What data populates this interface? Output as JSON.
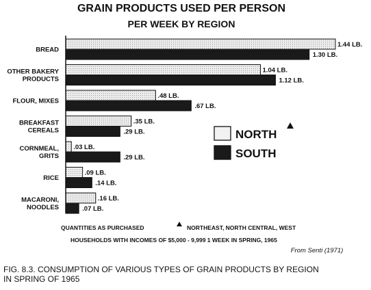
{
  "chart_data": {
    "type": "bar",
    "orientation": "horizontal",
    "title": "GRAIN PRODUCTS USED PER PERSON",
    "subtitle": "PER WEEK BY REGION",
    "categories": [
      [
        "BREAD"
      ],
      [
        "OTHER BAKERY",
        "PRODUCTS"
      ],
      [
        "FLOUR, MIXES"
      ],
      [
        "BREAKFAST",
        "CEREALS"
      ],
      [
        "CORNMEAL,",
        "GRITS"
      ],
      [
        "RICE"
      ],
      [
        "MACARONI,",
        "NOODLES"
      ]
    ],
    "series": [
      {
        "name": "NORTH",
        "color": "#e6e6e6",
        "values": [
          1.44,
          1.04,
          0.48,
          0.35,
          0.03,
          0.09,
          0.16
        ],
        "labels": [
          "1.44 LB.",
          "1.04 LB.",
          ".48 LB.",
          ".35 LB.",
          ".03 LB.",
          ".09 LB.",
          ".16 LB."
        ]
      },
      {
        "name": "SOUTH",
        "color": "#1a1a1a",
        "values": [
          1.3,
          1.12,
          0.67,
          0.29,
          0.29,
          0.14,
          0.07
        ],
        "labels": [
          "1.30 LB.",
          "1.12 LB.",
          ".67 LB.",
          ".29 LB.",
          ".29 LB.",
          ".14 LB.",
          ".07 LB."
        ]
      }
    ],
    "unit": "LB.",
    "xlim": [
      0,
      1.44
    ],
    "grid": false,
    "legend_position": "right",
    "legend_marker": "triangle",
    "notes": [
      "QUANTITIES AS PURCHASED",
      "NORTHEAST, NORTH CENTRAL, WEST",
      "HOUSEHOLDS WITH INCOMES OF $5,000 - 9,999 1 WEEK IN SPRING, 1965"
    ],
    "source": "From Senti (1971)",
    "caption": [
      "FIG. 8.3.   CONSUMPTION OF VARIOUS TYPES OF GRAIN PRODUCTS BY REGION",
      "IN SPRING OF 1965"
    ]
  }
}
